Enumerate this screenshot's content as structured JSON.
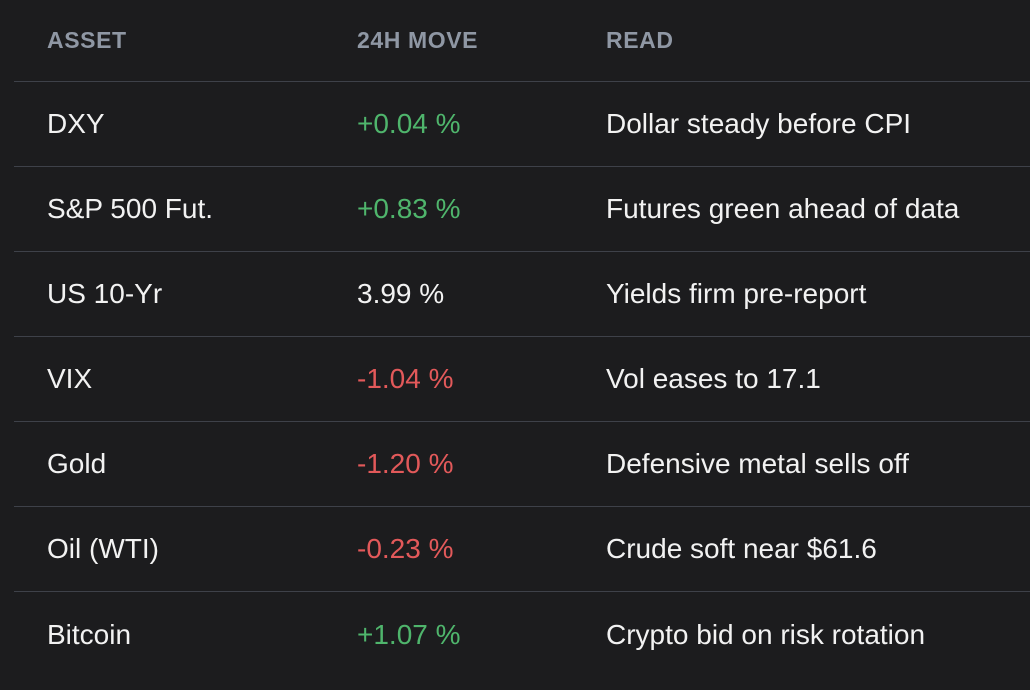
{
  "table": {
    "headers": {
      "asset": "ASSET",
      "move": "24H MOVE",
      "read": "READ"
    },
    "rows": [
      {
        "asset": "DXY",
        "move": "+0.04 %",
        "direction": "up",
        "read": "Dollar steady before CPI"
      },
      {
        "asset": "S&P 500 Fut.",
        "move": "+0.83 %",
        "direction": "up",
        "read": "Futures green ahead of data"
      },
      {
        "asset": "US 10-Yr",
        "move": "3.99 %",
        "direction": "flat",
        "read": "Yields firm pre-report"
      },
      {
        "asset": "VIX",
        "move": "-1.04 %",
        "direction": "down",
        "read": "Vol eases to 17.1"
      },
      {
        "asset": "Gold",
        "move": "-1.20 %",
        "direction": "down",
        "read": "Defensive metal sells off"
      },
      {
        "asset": "Oil (WTI)",
        "move": "-0.23 %",
        "direction": "down",
        "read": "Crude soft near $61.6"
      },
      {
        "asset": "Bitcoin",
        "move": "+1.07 %",
        "direction": "up",
        "read": "Crypto bid on risk rotation"
      }
    ]
  },
  "colors": {
    "background": "#1c1c1e",
    "header_text": "#8f97a4",
    "positive": "#4fb56c",
    "negative": "#e2595a",
    "divider": "#3e4149"
  }
}
